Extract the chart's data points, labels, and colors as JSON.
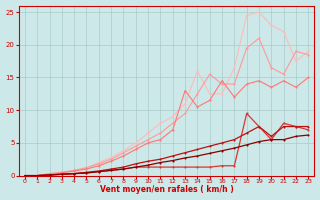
{
  "title": "",
  "xlabel": "Vent moyen/en rafales ( km/h )",
  "ylabel": "",
  "xlim": [
    -0.5,
    23.5
  ],
  "ylim": [
    0,
    26
  ],
  "bg_color": "#cce8e8",
  "grid_color": "#aacccc",
  "axis_color": "#cc0000",
  "xlabel_color": "#cc0000",
  "tick_color": "#cc0000",
  "lines": [
    {
      "color": "#ffbbbb",
      "linewidth": 0.8,
      "marker": "o",
      "markersize": 1.5,
      "x": [
        0,
        1,
        2,
        3,
        4,
        5,
        6,
        7,
        8,
        9,
        10,
        11,
        12,
        13,
        14,
        15,
        16,
        17,
        18,
        19,
        20,
        21,
        22,
        23
      ],
      "y": [
        0,
        0,
        0.3,
        0.5,
        0.8,
        1.2,
        2.0,
        2.8,
        3.8,
        5.0,
        6.5,
        8.0,
        9.0,
        11.0,
        16.0,
        12.5,
        12.5,
        16.5,
        24.5,
        25.0,
        23.0,
        22.0,
        17.5,
        19.0
      ]
    },
    {
      "color": "#ff9999",
      "linewidth": 0.8,
      "marker": "o",
      "markersize": 1.5,
      "x": [
        0,
        1,
        2,
        3,
        4,
        5,
        6,
        7,
        8,
        9,
        10,
        11,
        12,
        13,
        14,
        15,
        16,
        17,
        18,
        19,
        20,
        21,
        22,
        23
      ],
      "y": [
        0,
        0,
        0.3,
        0.5,
        0.8,
        1.2,
        1.8,
        2.5,
        3.5,
        4.5,
        5.5,
        6.5,
        8.0,
        9.5,
        12.5,
        15.5,
        14.0,
        14.0,
        19.5,
        21.0,
        16.5,
        15.5,
        19.0,
        18.5
      ]
    },
    {
      "color": "#ff7777",
      "linewidth": 0.8,
      "marker": "o",
      "markersize": 1.5,
      "x": [
        0,
        1,
        2,
        3,
        4,
        5,
        6,
        7,
        8,
        9,
        10,
        11,
        12,
        13,
        14,
        15,
        16,
        17,
        18,
        19,
        20,
        21,
        22,
        23
      ],
      "y": [
        0,
        0,
        0.2,
        0.4,
        0.7,
        1.0,
        1.5,
        2.2,
        3.0,
        4.0,
        5.0,
        5.5,
        7.0,
        13.0,
        10.5,
        11.5,
        14.5,
        12.0,
        14.0,
        14.5,
        13.5,
        14.5,
        13.5,
        15.0
      ]
    },
    {
      "color": "#dd3333",
      "linewidth": 0.9,
      "marker": "o",
      "markersize": 1.5,
      "x": [
        0,
        1,
        2,
        3,
        4,
        5,
        6,
        7,
        8,
        9,
        10,
        11,
        12,
        13,
        14,
        15,
        16,
        17,
        18,
        19,
        20,
        21,
        22,
        23
      ],
      "y": [
        0,
        0,
        0.1,
        0.2,
        0.3,
        0.4,
        0.6,
        0.8,
        1.0,
        1.3,
        1.3,
        1.3,
        1.3,
        1.3,
        1.3,
        1.3,
        1.5,
        1.5,
        9.5,
        7.5,
        5.5,
        8.0,
        7.5,
        7.0
      ]
    },
    {
      "color": "#bb1111",
      "linewidth": 0.9,
      "marker": "o",
      "markersize": 1.5,
      "x": [
        0,
        1,
        2,
        3,
        4,
        5,
        6,
        7,
        8,
        9,
        10,
        11,
        12,
        13,
        14,
        15,
        16,
        17,
        18,
        19,
        20,
        21,
        22,
        23
      ],
      "y": [
        0,
        0,
        0.1,
        0.2,
        0.3,
        0.5,
        0.7,
        1.0,
        1.3,
        1.8,
        2.2,
        2.5,
        3.0,
        3.5,
        4.0,
        4.5,
        5.0,
        5.5,
        6.5,
        7.5,
        6.0,
        7.5,
        7.5,
        7.5
      ]
    },
    {
      "color": "#880000",
      "linewidth": 0.9,
      "marker": "o",
      "markersize": 1.5,
      "x": [
        0,
        1,
        2,
        3,
        4,
        5,
        6,
        7,
        8,
        9,
        10,
        11,
        12,
        13,
        14,
        15,
        16,
        17,
        18,
        19,
        20,
        21,
        22,
        23
      ],
      "y": [
        0,
        0,
        0.1,
        0.2,
        0.3,
        0.4,
        0.6,
        0.8,
        1.0,
        1.3,
        1.6,
        2.0,
        2.3,
        2.7,
        3.0,
        3.4,
        3.8,
        4.2,
        4.7,
        5.2,
        5.5,
        5.5,
        6.0,
        6.2
      ]
    }
  ]
}
